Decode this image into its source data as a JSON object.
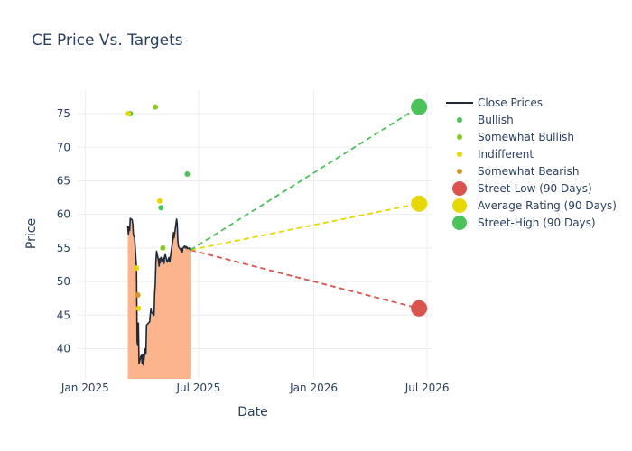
{
  "chart_data": {
    "type": "line",
    "title": "CE Price Vs. Targets",
    "xlabel": "Date",
    "ylabel": "Price",
    "xlim": [
      "2024-12-20",
      "2026-07-08"
    ],
    "ylim": [
      35.5,
      78.5
    ],
    "x_ticks": [
      {
        "date": "2025-01-01",
        "label": "Jan 2025"
      },
      {
        "date": "2025-07-01",
        "label": "Jul 2025"
      },
      {
        "date": "2026-01-01",
        "label": "Jan 2026"
      },
      {
        "date": "2026-07-01",
        "label": "Jul 2026"
      }
    ],
    "y_ticks": [
      40,
      45,
      50,
      55,
      60,
      65,
      70,
      75
    ],
    "grid": true,
    "legend_position": "right",
    "close_prices": {
      "name": "Close Prices",
      "color": "#1f2937",
      "fill_color": "#fbb48c",
      "x": [
        "2025-03-10",
        "2025-03-11",
        "2025-03-12",
        "2025-03-13",
        "2025-03-14",
        "2025-03-17",
        "2025-03-18",
        "2025-03-19",
        "2025-03-20",
        "2025-03-21",
        "2025-03-24",
        "2025-03-25",
        "2025-03-26",
        "2025-03-27",
        "2025-03-28",
        "2025-03-31",
        "2025-04-01",
        "2025-04-02",
        "2025-04-03",
        "2025-04-04",
        "2025-04-07",
        "2025-04-08",
        "2025-04-09",
        "2025-04-10",
        "2025-04-11",
        "2025-04-14",
        "2025-04-15",
        "2025-04-16",
        "2025-04-17",
        "2025-04-21",
        "2025-04-22",
        "2025-04-23",
        "2025-04-24",
        "2025-04-25",
        "2025-04-28",
        "2025-04-29",
        "2025-04-30",
        "2025-05-01",
        "2025-05-02",
        "2025-05-05",
        "2025-05-06",
        "2025-05-07",
        "2025-05-08",
        "2025-05-09",
        "2025-05-12",
        "2025-05-13",
        "2025-05-14",
        "2025-05-15",
        "2025-05-16",
        "2025-05-19",
        "2025-05-20",
        "2025-05-21",
        "2025-05-22",
        "2025-05-23",
        "2025-05-27",
        "2025-05-28",
        "2025-05-29",
        "2025-05-30",
        "2025-06-02",
        "2025-06-03",
        "2025-06-04",
        "2025-06-05",
        "2025-06-06",
        "2025-06-09",
        "2025-06-10",
        "2025-06-11",
        "2025-06-12",
        "2025-06-13",
        "2025-06-16",
        "2025-06-17",
        "2025-06-18"
      ],
      "y": [
        58.3,
        57.0,
        58.1,
        57.6,
        59.4,
        59.2,
        58.5,
        57.0,
        56.7,
        56.5,
        52.0,
        41.0,
        40.5,
        43.8,
        37.8,
        38.9,
        39.0,
        37.8,
        39.2,
        37.6,
        40.0,
        39.2,
        43.5,
        43.6,
        43.7,
        44.0,
        45.2,
        45.9,
        45.4,
        45.0,
        48.2,
        49.8,
        53.1,
        54.5,
        53.2,
        52.3,
        53.4,
        52.8,
        53.6,
        52.9,
        53.5,
        52.7,
        53.8,
        54.0,
        52.9,
        53.0,
        53.4,
        53.6,
        52.9,
        55.0,
        55.6,
        56.2,
        57.3,
        56.5,
        59.3,
        58.6,
        56.0,
        55.2,
        54.8,
        54.6,
        54.9,
        54.4,
        55.0,
        55.3,
        55.0,
        55.1,
        55.2,
        54.9,
        55.0,
        54.8,
        54.7
      ]
    },
    "analyst_ratings": [
      {
        "name": "Bullish",
        "color": "#4cc35a",
        "points": [
          {
            "x": "2025-03-14",
            "y": 75
          },
          {
            "x": "2025-05-02",
            "y": 61
          },
          {
            "x": "2025-06-13",
            "y": 66
          }
        ]
      },
      {
        "name": "Somewhat Bullish",
        "color": "#8ac926",
        "points": [
          {
            "x": "2025-04-23",
            "y": 76
          },
          {
            "x": "2025-05-05",
            "y": 55
          }
        ]
      },
      {
        "name": "Indifferent",
        "color": "#e6d800",
        "points": [
          {
            "x": "2025-03-11",
            "y": 75
          },
          {
            "x": "2025-03-24",
            "y": 52
          },
          {
            "x": "2025-03-27",
            "y": 46
          },
          {
            "x": "2025-04-30",
            "y": 62
          }
        ]
      },
      {
        "name": "Somewhat Bearish",
        "color": "#d4952b",
        "points": [
          {
            "x": "2025-03-26",
            "y": 48
          }
        ]
      }
    ],
    "targets": [
      {
        "name": "Street-Low (90 Days)",
        "color": "#d9534f",
        "x": "2026-06-18",
        "y": 46
      },
      {
        "name": "Average Rating (90 Days)",
        "color": "#e6d800",
        "x": "2026-06-18",
        "y": 61.6
      },
      {
        "name": "Street-High (90 Days)",
        "color": "#4cc35a",
        "x": "2026-06-18",
        "y": 76
      }
    ],
    "projection_start": {
      "x": "2025-06-18",
      "y": 54.7
    }
  }
}
